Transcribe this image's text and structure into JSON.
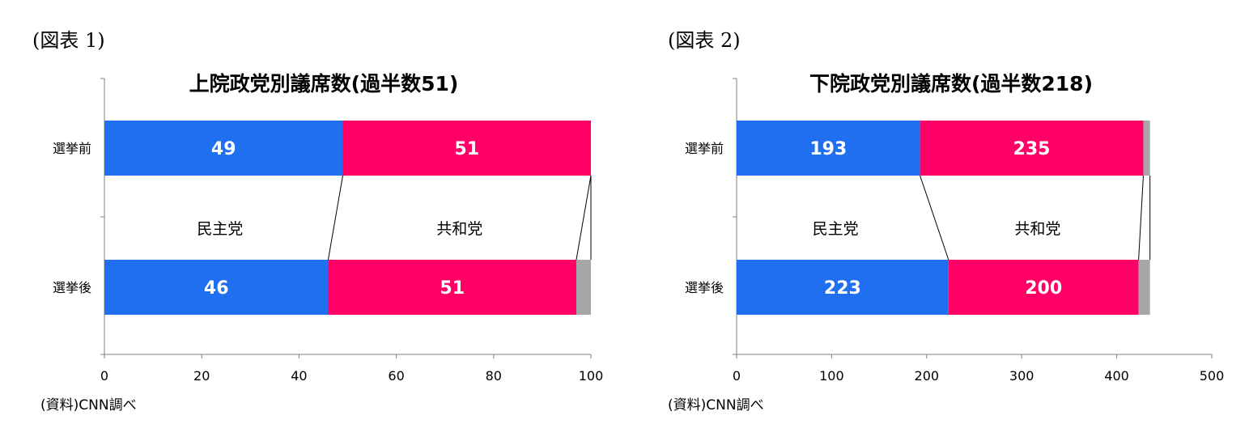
{
  "colors": {
    "democrat": "#1f6ff0",
    "republican": "#ff0066",
    "other": "#a6a6a6"
  },
  "figures": [
    {
      "figure_label": "(図表 1)",
      "source": "(資料)CNN調べ"
    },
    {
      "figure_label": "(図表 2)",
      "source": "(資料)CNN調べ"
    }
  ],
  "chart_data": [
    {
      "type": "bar",
      "orientation": "horizontal",
      "stacked": true,
      "title": "上院政党別議席数(過半数51)",
      "categories": [
        "選挙前",
        "選挙後"
      ],
      "series": [
        {
          "name": "民主党",
          "values": [
            49,
            46
          ],
          "color": "#1f6ff0",
          "labels": [
            "49",
            "46"
          ]
        },
        {
          "name": "共和党",
          "values": [
            51,
            51
          ],
          "color": "#ff0066",
          "labels": [
            "51",
            "51"
          ]
        },
        {
          "values": [
            0,
            3
          ],
          "color": "#a6a6a6"
        }
      ],
      "xlim": [
        0,
        100
      ],
      "xticks": [
        0,
        20,
        40,
        60,
        80,
        100
      ],
      "series_lines": true,
      "grid": false
    },
    {
      "type": "bar",
      "orientation": "horizontal",
      "stacked": true,
      "title": "下院政党別議席数(過半数218)",
      "categories": [
        "選挙前",
        "選挙後"
      ],
      "series": [
        {
          "name": "民主党",
          "values": [
            193,
            223
          ],
          "color": "#1f6ff0",
          "labels": [
            "193",
            "223"
          ]
        },
        {
          "name": "共和党",
          "values": [
            235,
            200
          ],
          "color": "#ff0066",
          "labels": [
            "235",
            "200"
          ]
        },
        {
          "values": [
            7,
            12
          ],
          "color": "#a6a6a6"
        }
      ],
      "xlim": [
        0,
        500
      ],
      "xticks": [
        0,
        100,
        200,
        300,
        400,
        500
      ],
      "series_lines": true,
      "grid": false
    }
  ]
}
